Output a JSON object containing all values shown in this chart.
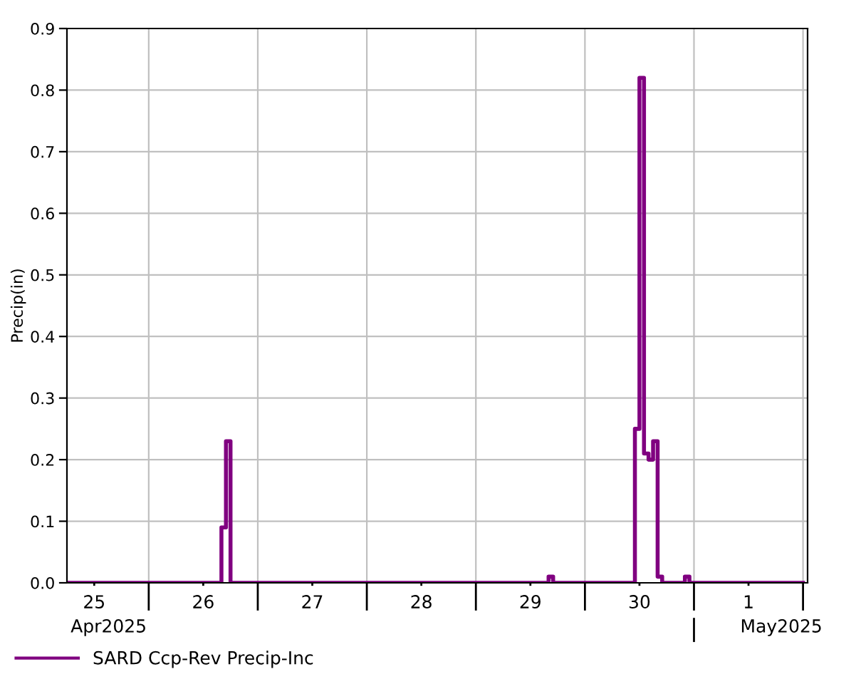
{
  "chart_data": {
    "type": "step",
    "ylabel": "Precip(in)",
    "series": [
      {
        "name": "SARD Ccp-Rev Precip-Inc",
        "color": "#800080",
        "x": [
          "2025-04-25T06:00",
          "2025-04-26T16:00",
          "2025-04-26T17:00",
          "2025-04-26T18:00",
          "2025-04-29T16:00",
          "2025-04-29T17:00",
          "2025-04-30T11:00",
          "2025-04-30T12:00",
          "2025-04-30T13:00",
          "2025-04-30T14:00",
          "2025-04-30T15:00",
          "2025-04-30T16:00",
          "2025-04-30T17:00",
          "2025-04-30T22:00",
          "2025-04-30T23:00",
          "2025-05-02T00:00"
        ],
        "values": [
          0,
          0.09,
          0.23,
          0,
          0.01,
          0,
          0.25,
          0.82,
          0.21,
          0.2,
          0.23,
          0.01,
          0,
          0.01,
          0,
          0
        ]
      }
    ],
    "xlim": [
      "2025-04-25T06:00",
      "2025-05-02T01:00"
    ],
    "xticks": [
      {
        "value": "2025-04-25T12:00",
        "label": "25"
      },
      {
        "value": "2025-04-26T00:00",
        "label": null
      },
      {
        "value": "2025-04-26T12:00",
        "label": "26"
      },
      {
        "value": "2025-04-27T00:00",
        "label": null
      },
      {
        "value": "2025-04-27T12:00",
        "label": "27"
      },
      {
        "value": "2025-04-28T00:00",
        "label": null
      },
      {
        "value": "2025-04-28T12:00",
        "label": "28"
      },
      {
        "value": "2025-04-29T00:00",
        "label": null
      },
      {
        "value": "2025-04-29T12:00",
        "label": "29"
      },
      {
        "value": "2025-04-30T00:00",
        "label": null
      },
      {
        "value": "2025-04-30T12:00",
        "label": "30"
      },
      {
        "value": "2025-05-01T00:00",
        "label": null
      },
      {
        "value": "2025-05-01T12:00",
        "label": "1"
      },
      {
        "value": "2025-05-02T00:00",
        "label": null
      }
    ],
    "ylim": [
      0,
      0.9
    ],
    "yticks": [
      {
        "value": 0,
        "label": "0.0"
      },
      0.1,
      0.2,
      0.3,
      0.4,
      0.5,
      0.6,
      0.7,
      0.8,
      0.9
    ],
    "annotations": [
      "Apr2025",
      "May2025"
    ],
    "grid": true,
    "legend": "bottom left",
    "line_style": "solid",
    "marker": "none"
  }
}
